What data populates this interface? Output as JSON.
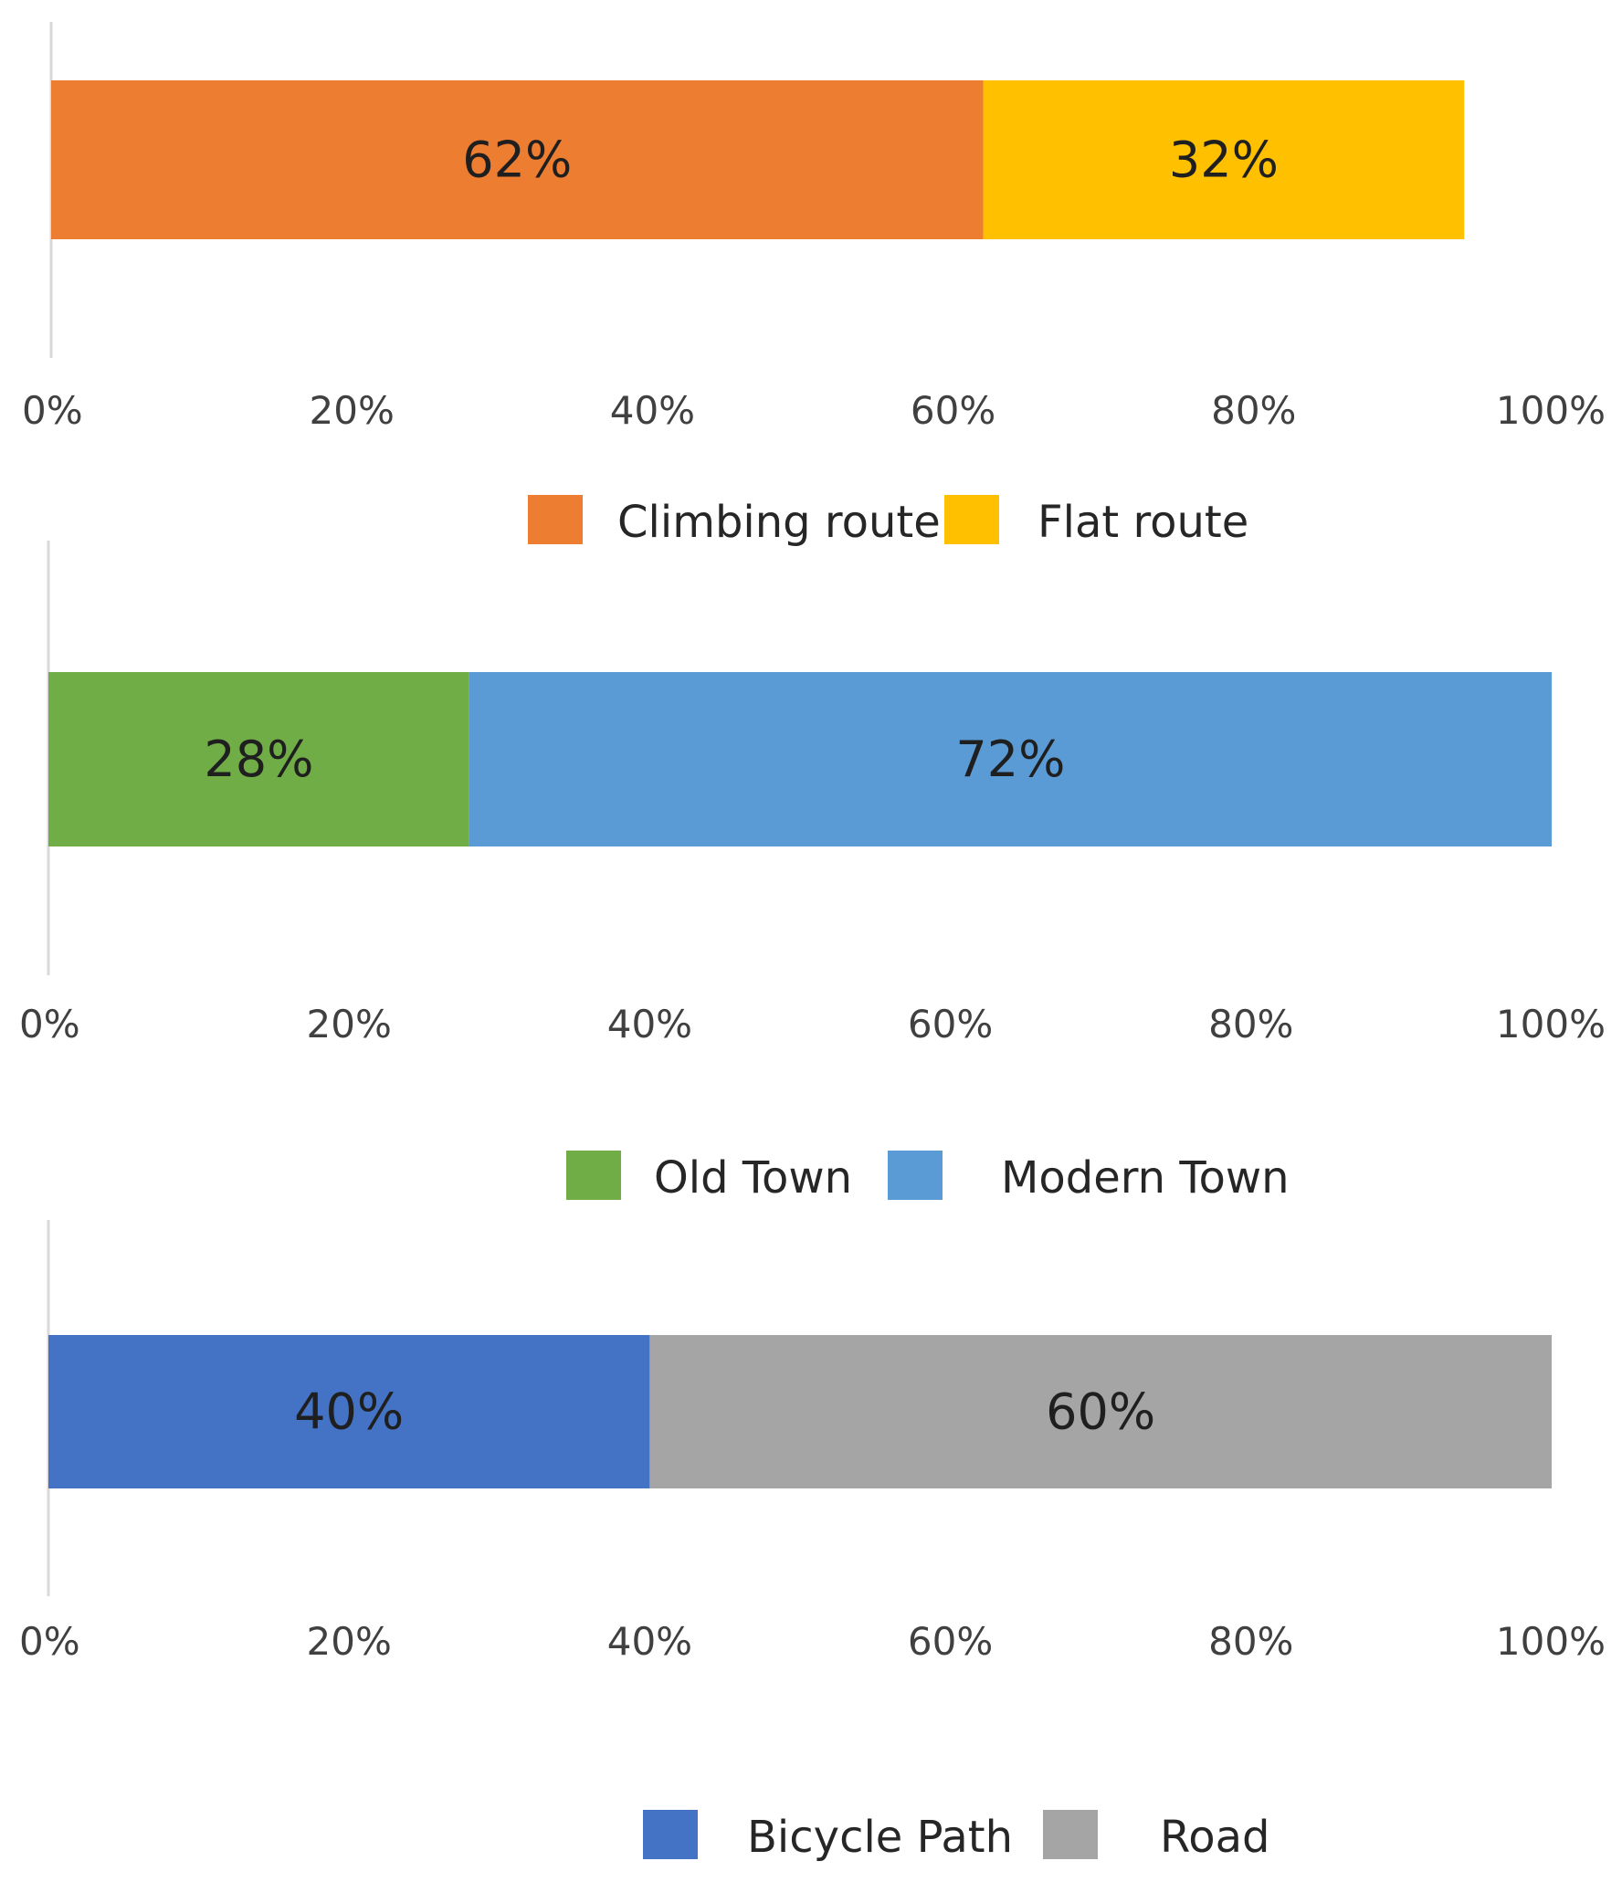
{
  "chart_data": [
    {
      "type": "bar",
      "orientation": "horizontal",
      "stacked": true,
      "xlim": [
        0,
        100
      ],
      "xticks": [
        "0%",
        "20%",
        "40%",
        "60%",
        "80%",
        "100%"
      ],
      "legend_position": "bottom",
      "grid": false,
      "series": [
        {
          "name": "Climbing route",
          "values": [
            62
          ],
          "label": "62%",
          "color": "#ED7D31"
        },
        {
          "name": "Flat route",
          "values": [
            32
          ],
          "label": "32%",
          "color": "#FFC000"
        }
      ]
    },
    {
      "type": "bar",
      "orientation": "horizontal",
      "stacked": true,
      "xlim": [
        0,
        100
      ],
      "xticks": [
        "0%",
        "20%",
        "40%",
        "60%",
        "80%",
        "100%"
      ],
      "legend_position": "bottom",
      "grid": false,
      "series": [
        {
          "name": "Old Town",
          "values": [
            28
          ],
          "label": "28%",
          "color": "#70AD47"
        },
        {
          "name": "Modern Town",
          "values": [
            72
          ],
          "label": "72%",
          "color": "#5B9BD5"
        }
      ]
    },
    {
      "type": "bar",
      "orientation": "horizontal",
      "stacked": true,
      "xlim": [
        0,
        100
      ],
      "xticks": [
        "0%",
        "20%",
        "40%",
        "60%",
        "80%",
        "100%"
      ],
      "legend_position": "bottom",
      "grid": false,
      "series": [
        {
          "name": "Bicycle Path",
          "values": [
            40
          ],
          "label": "40%",
          "color": "#4472C4"
        },
        {
          "name": "Road",
          "values": [
            60
          ],
          "label": "60%",
          "color": "#A5A5A5"
        }
      ]
    }
  ]
}
